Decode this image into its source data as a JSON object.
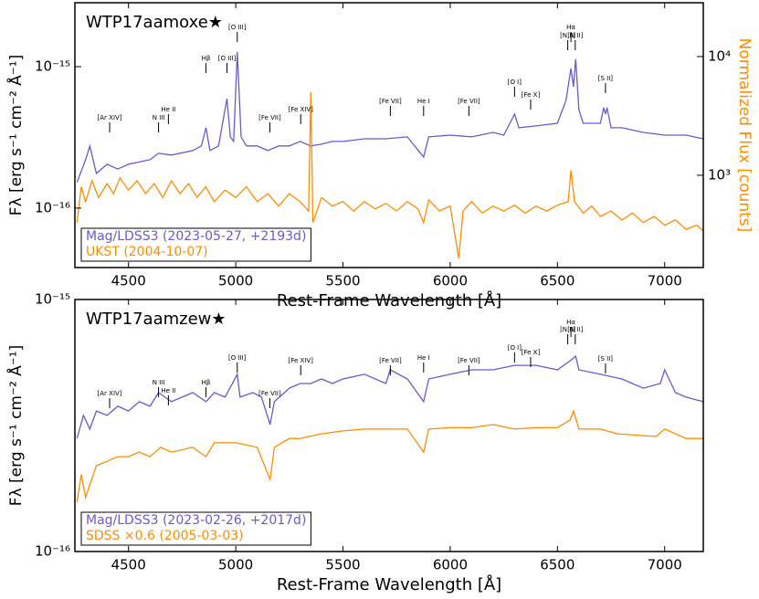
{
  "chart_data": [
    {
      "type": "line",
      "title": "WTP17aamoxe★",
      "xlabel": "Rest-Frame Wavelength [Å]",
      "ylabel": "Fλ [erg s⁻¹ cm⁻² Å⁻¹]",
      "y2label": "Normalized Flux [counts]",
      "xlim": [
        4250,
        7180
      ],
      "xticks": [
        4500,
        5000,
        5500,
        6000,
        6500,
        7000
      ],
      "ylim": [
        3.8e-17,
        2.83e-15
      ],
      "yticks": [
        {
          "value": 1e-15,
          "label": "10⁻¹⁵"
        },
        {
          "value": 1e-16,
          "label": "10⁻¹⁶"
        }
      ],
      "y2lim": [
        167,
        28400
      ],
      "y2ticks": [
        {
          "value": 10000,
          "label": "10⁴"
        },
        {
          "value": 1000,
          "label": "10³"
        }
      ],
      "log_y": true,
      "legend": "lower left",
      "series": [
        {
          "name": "Mag/LDSS3 (2023-05-27, +2193d)",
          "color": "#6a5acd",
          "x": [
            4260,
            4300,
            4320,
            4350,
            4400,
            4450,
            4500,
            4600,
            4640,
            4700,
            4800,
            4840,
            4861,
            4880,
            4920,
            4959,
            4975,
            4990,
            5007,
            5025,
            5050,
            5100,
            5150,
            5200,
            5250,
            5300,
            5350,
            5400,
            5450,
            5500,
            5600,
            5700,
            5800,
            5876,
            5900,
            6000,
            6100,
            6200,
            6250,
            6300,
            6320,
            6400,
            6500,
            6540,
            6563,
            6575,
            6585,
            6600,
            6620,
            6700,
            6716,
            6724,
            6731,
            6750,
            6800,
            6900,
            7000,
            7100,
            7180
          ],
          "values": [
            1.52e-16,
            2.2e-16,
            2.75e-16,
            1.76e-16,
            2.04e-16,
            1.89e-16,
            2.04e-16,
            2.2e-16,
            2.44e-16,
            2.37e-16,
            2.55e-16,
            2.75e-16,
            3.7e-16,
            2.55e-16,
            2.75e-16,
            5.94e-16,
            3.19e-16,
            2.96e-16,
            1.27e-15,
            3.19e-16,
            2.75e-16,
            2.75e-16,
            2.55e-16,
            2.75e-16,
            2.75e-16,
            2.96e-16,
            2.75e-16,
            2.83e-16,
            2.96e-16,
            2.96e-16,
            3.09e-16,
            3.09e-16,
            3.19e-16,
            2.3e-16,
            3.19e-16,
            3.28e-16,
            3.19e-16,
            3.43e-16,
            3.28e-16,
            4.62e-16,
            3.7e-16,
            3.81e-16,
            3.98e-16,
            5.77e-16,
            9.7e-16,
            7.21e-16,
            1.13e-15,
            4.98e-16,
            3.98e-16,
            3.98e-16,
            5.13e-16,
            4.62e-16,
            5.13e-16,
            3.7e-16,
            3.7e-16,
            3.43e-16,
            3.28e-16,
            3.28e-16,
            3.09e-16
          ]
        },
        {
          "name": "UKST (2004-10-07)",
          "color": "#ff8c00",
          "axis": "y2",
          "x": [
            4260,
            4280,
            4300,
            4330,
            4360,
            4400,
            4430,
            4460,
            4500,
            4540,
            4580,
            4620,
            4660,
            4700,
            4740,
            4780,
            4820,
            4860,
            4900,
            4950,
            5000,
            5050,
            5100,
            5150,
            5200,
            5250,
            5300,
            5340,
            5350,
            5360,
            5400,
            5450,
            5500,
            5550,
            5600,
            5650,
            5700,
            5750,
            5800,
            5850,
            5876,
            5900,
            5950,
            6000,
            6040,
            6060,
            6100,
            6150,
            6200,
            6250,
            6300,
            6350,
            6400,
            6450,
            6500,
            6550,
            6563,
            6580,
            6620,
            6660,
            6700,
            6750,
            6800,
            6850,
            6900,
            6950,
            7000,
            7050,
            7100,
            7150,
            7180
          ],
          "values": [
            400,
            800,
            600,
            900,
            650,
            850,
            700,
            950,
            750,
            900,
            700,
            850,
            650,
            900,
            700,
            850,
            650,
            800,
            600,
            750,
            650,
            800,
            600,
            700,
            550,
            700,
            600,
            500,
            5000,
            400,
            650,
            550,
            600,
            500,
            600,
            520,
            580,
            500,
            600,
            520,
            400,
            620,
            500,
            550,
            200,
            500,
            600,
            480,
            550,
            500,
            560,
            480,
            550,
            500,
            560,
            600,
            1100,
            600,
            480,
            550,
            450,
            500,
            420,
            480,
            400,
            450,
            380,
            420,
            350,
            380,
            340
          ]
        }
      ],
      "annotations": [
        {
          "text": "[Ar XIV]",
          "x": 4412
        },
        {
          "text": "N III",
          "x": 4640
        },
        {
          "text": "He II",
          "x": 4686
        },
        {
          "text": "Hβ",
          "x": 4861
        },
        {
          "text": "[O III]",
          "x": 4959
        },
        {
          "text": "[O III]",
          "x": 5007
        },
        {
          "text": "[Fe VII]",
          "x": 5159
        },
        {
          "text": "[Fe XIV]",
          "x": 5303
        },
        {
          "text": "[Fe VII]",
          "x": 5721
        },
        {
          "text": "He I",
          "x": 5876
        },
        {
          "text": "[Fe VII]",
          "x": 6087
        },
        {
          "text": "[O I]",
          "x": 6300
        },
        {
          "text": "[Fe X]",
          "x": 6375
        },
        {
          "text": "[N II]",
          "x": 6548
        },
        {
          "text": "Hα",
          "x": 6563
        },
        {
          "text": "[N II]",
          "x": 6583
        },
        {
          "text": "[S II]",
          "x": 6724
        }
      ]
    },
    {
      "type": "line",
      "title": "WTP17aamzew★",
      "xlabel": "Rest-Frame Wavelength [Å]",
      "ylabel": "Fλ [erg s⁻¹ cm⁻² Å⁻¹]",
      "xlim": [
        4250,
        7180
      ],
      "xticks": [
        4500,
        5000,
        5500,
        6000,
        6500,
        7000
      ],
      "ylim": [
        1e-16,
        1e-15
      ],
      "yticks": [
        {
          "value": 1e-15,
          "label": "10⁻¹⁵"
        },
        {
          "value": 1e-16,
          "label": "10⁻¹⁶"
        }
      ],
      "log_y": true,
      "legend": "lower left",
      "series": [
        {
          "name": "Mag/LDSS3 (2023-02-26, +2017d)",
          "color": "#6a5acd",
          "x": [
            4260,
            4290,
            4320,
            4350,
            4400,
            4450,
            4500,
            4550,
            4600,
            4640,
            4700,
            4750,
            4800,
            4861,
            4900,
            4950,
            5007,
            5020,
            5080,
            5120,
            5160,
            5180,
            5250,
            5300,
            5350,
            5400,
            5450,
            5500,
            5600,
            5700,
            5720,
            5800,
            5876,
            5900,
            6000,
            6100,
            6200,
            6300,
            6400,
            6500,
            6560,
            6585,
            6600,
            6700,
            6800,
            6900,
            6980,
            7000,
            7050,
            7100,
            7180
          ],
          "values": [
            2.81e-16,
            3.47e-16,
            3.06e-16,
            3.61e-16,
            3.47e-16,
            3.77e-16,
            3.61e-16,
            3.93e-16,
            3.77e-16,
            4.27e-16,
            3.93e-16,
            4.1e-16,
            4.27e-16,
            3.93e-16,
            4.27e-16,
            4.1e-16,
            5.05e-16,
            4.1e-16,
            4.27e-16,
            4.1e-16,
            3.19e-16,
            3.93e-16,
            4.45e-16,
            4.64e-16,
            4.64e-16,
            4.84e-16,
            4.64e-16,
            4.84e-16,
            5.05e-16,
            4.64e-16,
            5.26e-16,
            4.84e-16,
            3.93e-16,
            4.84e-16,
            5.05e-16,
            5.26e-16,
            5.26e-16,
            5.48e-16,
            5.48e-16,
            5.26e-16,
            5.72e-16,
            5.96e-16,
            5.26e-16,
            5.05e-16,
            4.84e-16,
            4.45e-16,
            4.64e-16,
            5.26e-16,
            4.27e-16,
            4.1e-16,
            3.93e-16
          ]
        },
        {
          "name": "SDSS ×0.6 (2005-03-03)",
          "color": "#ff8c00",
          "x": [
            4260,
            4280,
            4300,
            4350,
            4400,
            4450,
            4500,
            4550,
            4600,
            4650,
            4700,
            4800,
            4861,
            4900,
            5000,
            5100,
            5160,
            5180,
            5250,
            5300,
            5400,
            5500,
            5600,
            5700,
            5800,
            5876,
            5900,
            6000,
            6100,
            6200,
            6300,
            6400,
            6500,
            6560,
            6575,
            6600,
            6700,
            6780,
            6960,
            7000,
            7100,
            7180
          ],
          "values": [
            1.57e-16,
            2.02e-16,
            1.64e-16,
            2.19e-16,
            2.28e-16,
            2.38e-16,
            2.38e-16,
            2.48e-16,
            2.38e-16,
            2.59e-16,
            2.48e-16,
            2.59e-16,
            2.38e-16,
            2.7e-16,
            2.7e-16,
            2.59e-16,
            1.93e-16,
            2.59e-16,
            2.81e-16,
            2.81e-16,
            2.93e-16,
            3.01e-16,
            3.06e-16,
            3.06e-16,
            3.06e-16,
            2.48e-16,
            3.06e-16,
            3.1e-16,
            3.1e-16,
            3.19e-16,
            3.06e-16,
            3.1e-16,
            3.1e-16,
            3.33e-16,
            3.61e-16,
            3.06e-16,
            3.06e-16,
            2.93e-16,
            2.86e-16,
            3.06e-16,
            2.81e-16,
            2.81e-16
          ]
        }
      ],
      "annotations": [
        {
          "text": "[Ar XIV]",
          "x": 4412
        },
        {
          "text": "N III",
          "x": 4640
        },
        {
          "text": "He II",
          "x": 4686
        },
        {
          "text": "Hβ",
          "x": 4861
        },
        {
          "text": "[O III]",
          "x": 5007
        },
        {
          "text": "[Fe VII]",
          "x": 5159
        },
        {
          "text": "[Fe XIV]",
          "x": 5303
        },
        {
          "text": "[Fe VII]",
          "x": 5721
        },
        {
          "text": "He I",
          "x": 5876
        },
        {
          "text": "[Fe VII]",
          "x": 6087
        },
        {
          "text": "[O I]",
          "x": 6300
        },
        {
          "text": "[Fe X]",
          "x": 6375
        },
        {
          "text": "[N II]",
          "x": 6548
        },
        {
          "text": "Hα",
          "x": 6563
        },
        {
          "text": "[N II]",
          "x": 6583
        },
        {
          "text": "[S II]",
          "x": 6724
        }
      ]
    }
  ]
}
